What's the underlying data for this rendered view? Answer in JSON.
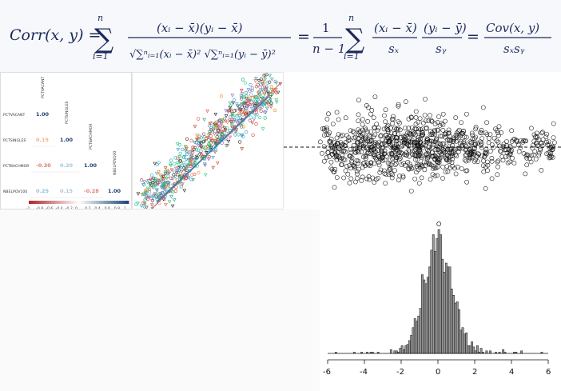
{
  "formula": {
    "lhs": "Corr(x, y) = ",
    "numerator": "(xᵢ − x̄)(yᵢ − x̄)",
    "denominator": "√∑ⁿᵢ₌₁(xᵢ − x̄)² √∑ⁿᵢ₌₁(yᵢ − ȳ)²",
    "sum_upper": "n",
    "sum_lower": "i=1",
    "eq2": "=",
    "frac_num": "1",
    "frac_den": "n − 1",
    "term1_num": "(xᵢ − x̄)",
    "term1_den": "sₓ",
    "term2_num": "(yᵢ − ȳ)",
    "term2_den": "sᵧ",
    "eq3": "=",
    "cov_num": "Cov(x, y)",
    "cov_den": "sₓsᵧ"
  },
  "correlation_matrix": {
    "row_labels": [
      "PCTVACANT",
      "PCTSINGLES",
      "PCTBACHMOR",
      "NBELPOV100"
    ],
    "col_labels": [
      "PCTVACANT",
      "PCTSINGLES",
      "PCTBACHMOR",
      "NBELPOV100"
    ],
    "cells": [
      [
        "1.00"
      ],
      [
        "0.15",
        "1.00"
      ],
      [
        "-0.30",
        "0.20",
        "1.00"
      ],
      [
        "0.25",
        "0.15",
        "-0.28",
        "1.00"
      ]
    ],
    "scale_ticks": [
      "-1",
      "-0.8",
      "-0.6",
      "-0.4",
      "-0.2",
      "0",
      "0.2",
      "0.4",
      "0.6",
      "0.8",
      "1"
    ],
    "colors": {
      "negative": "#c0392b",
      "positive": "#1f4e79"
    }
  },
  "residual_plot": {
    "line_style": "dashed"
  },
  "maps": {
    "left_color": "#e8735a",
    "right_color": "#9b59d0"
  },
  "chart_data": [
    {
      "type": "histogram",
      "x_ticks": [
        "-6",
        "-4",
        "-2",
        "0",
        "2",
        "4",
        "6"
      ],
      "xlim": [
        -6,
        6
      ],
      "bin_width": 0.1,
      "mean": 0,
      "sd": 1
    }
  ]
}
